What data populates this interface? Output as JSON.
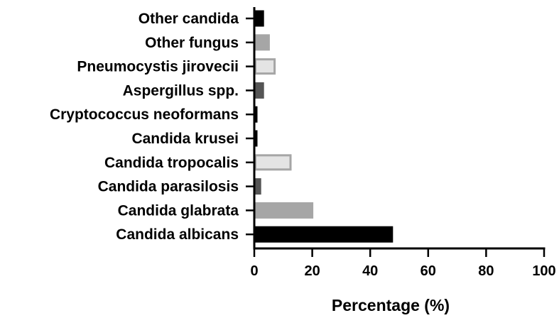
{
  "chart_data": {
    "type": "bar",
    "orientation": "horizontal",
    "categories": [
      "Other candida",
      "Other fungus",
      "Pneumocystis jirovecii",
      "Aspergillus spp.",
      "Cryptococcus neoformans",
      "Candida krusei",
      "Candida tropocalis",
      "Candida parasilosis",
      "Candida glabrata",
      "Candida albicans"
    ],
    "values": [
      3.0,
      5.0,
      7.0,
      3.0,
      0.3,
      0.3,
      12.5,
      2.0,
      20.0,
      47.5
    ],
    "bar_styles": [
      {
        "fill": "#000000",
        "stroke": "#000000"
      },
      {
        "fill": "#a6a6a6",
        "stroke": "#a6a6a6"
      },
      {
        "fill": "#e4e4e4",
        "stroke": "#a6a6a6"
      },
      {
        "fill": "#555555",
        "stroke": "#555555"
      },
      {
        "fill": "#000000",
        "stroke": "#000000"
      },
      {
        "fill": "#000000",
        "stroke": "#000000"
      },
      {
        "fill": "#e4e4e4",
        "stroke": "#a6a6a6"
      },
      {
        "fill": "#555555",
        "stroke": "#555555"
      },
      {
        "fill": "#a6a6a6",
        "stroke": "#a6a6a6"
      },
      {
        "fill": "#000000",
        "stroke": "#000000"
      }
    ],
    "xlabel": "Percentage (%)",
    "ylabel": "",
    "title": "",
    "xlim": [
      0,
      100
    ],
    "xticks": [
      0,
      20,
      40,
      60,
      80,
      100
    ],
    "grid": false,
    "legend": "none"
  }
}
